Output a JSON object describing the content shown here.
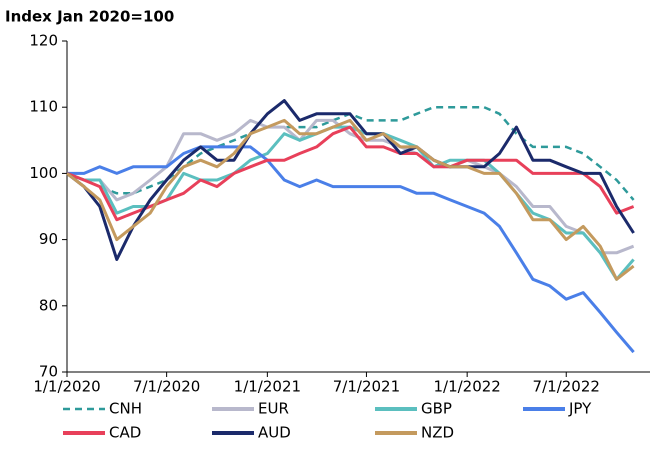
{
  "chart_data": {
    "type": "line",
    "title": "Index Jan 2020=100",
    "x": [
      "2020-01-01",
      "2020-02-01",
      "2020-03-01",
      "2020-04-01",
      "2020-05-01",
      "2020-06-01",
      "2020-07-01",
      "2020-08-01",
      "2020-09-01",
      "2020-10-01",
      "2020-11-01",
      "2020-12-01",
      "2021-01-01",
      "2021-02-01",
      "2021-03-01",
      "2021-04-01",
      "2021-05-01",
      "2021-06-01",
      "2021-07-01",
      "2021-08-01",
      "2021-09-01",
      "2021-10-01",
      "2021-11-01",
      "2021-12-01",
      "2022-01-01",
      "2022-02-01",
      "2022-03-01",
      "2022-04-01",
      "2022-05-01",
      "2022-06-01",
      "2022-07-01",
      "2022-08-01",
      "2022-09-01",
      "2022-10-01",
      "2022-11-01"
    ],
    "series": [
      {
        "name": "CNH",
        "color": "#2e9a9a",
        "dashed": true,
        "values": [
          100,
          99,
          98,
          97,
          97,
          98,
          99,
          101,
          103,
          104,
          105,
          106,
          107,
          107,
          107,
          107,
          108,
          109,
          108,
          108,
          108,
          109,
          110,
          110,
          110,
          110,
          109,
          106,
          104,
          104,
          104,
          103,
          101,
          99,
          96
        ]
      },
      {
        "name": "EUR",
        "color": "#b8b8cc",
        "values": [
          100,
          99,
          99,
          96,
          97,
          99,
          101,
          106,
          106,
          105,
          106,
          108,
          107,
          107,
          105,
          108,
          108,
          106,
          105,
          105,
          104,
          103,
          101,
          101,
          102,
          101,
          100,
          98,
          95,
          95,
          92,
          91,
          88,
          88,
          89
        ]
      },
      {
        "name": "GBP",
        "color": "#5bbfbf",
        "values": [
          100,
          99,
          99,
          94,
          95,
          95,
          96,
          100,
          99,
          99,
          100,
          102,
          103,
          106,
          105,
          106,
          107,
          107,
          106,
          106,
          105,
          104,
          101,
          102,
          102,
          102,
          100,
          97,
          94,
          93,
          91,
          91,
          88,
          84,
          87
        ]
      },
      {
        "name": "JPY",
        "color": "#4a7fe8",
        "values": [
          100,
          100,
          101,
          100,
          101,
          101,
          101,
          103,
          104,
          104,
          104,
          104,
          102,
          99,
          98,
          99,
          98,
          98,
          98,
          98,
          98,
          97,
          97,
          96,
          95,
          94,
          92,
          88,
          84,
          83,
          81,
          82,
          79,
          76,
          73
        ]
      },
      {
        "name": "CAD",
        "color": "#e8405a",
        "values": [
          100,
          99,
          98,
          93,
          94,
          95,
          96,
          97,
          99,
          98,
          100,
          101,
          102,
          102,
          103,
          104,
          106,
          107,
          104,
          104,
          103,
          103,
          101,
          101,
          102,
          102,
          102,
          102,
          100,
          100,
          100,
          100,
          98,
          94,
          95
        ]
      },
      {
        "name": "AUD",
        "color": "#1b2a6b",
        "values": [
          100,
          98,
          95,
          87,
          92,
          96,
          99,
          102,
          104,
          102,
          102,
          106,
          109,
          111,
          108,
          109,
          109,
          109,
          106,
          106,
          103,
          104,
          102,
          101,
          101,
          101,
          103,
          107,
          102,
          102,
          101,
          100,
          100,
          95,
          91
        ]
      },
      {
        "name": "NZD",
        "color": "#c49a5e",
        "values": [
          100,
          98,
          96,
          90,
          92,
          94,
          98,
          101,
          102,
          101,
          103,
          106,
          107,
          108,
          106,
          106,
          107,
          108,
          105,
          106,
          104,
          104,
          102,
          101,
          101,
          100,
          100,
          97,
          93,
          93,
          90,
          92,
          89,
          84,
          86
        ]
      }
    ],
    "xlim": [
      "2020-01-01",
      "2022-12-01"
    ],
    "xticks": [
      {
        "value": "2020-01-01",
        "label": "1/1/2020"
      },
      {
        "value": "2020-07-01",
        "label": "7/1/2020"
      },
      {
        "value": "2021-01-01",
        "label": "1/1/2021"
      },
      {
        "value": "2021-07-01",
        "label": "7/1/2021"
      },
      {
        "value": "2022-01-01",
        "label": "1/1/2022"
      },
      {
        "value": "2022-07-01",
        "label": "7/1/2022"
      }
    ],
    "ylim": [
      70,
      120
    ],
    "yticks": [
      70,
      80,
      90,
      100,
      110,
      120
    ],
    "grid": false,
    "legend": "bottom"
  }
}
